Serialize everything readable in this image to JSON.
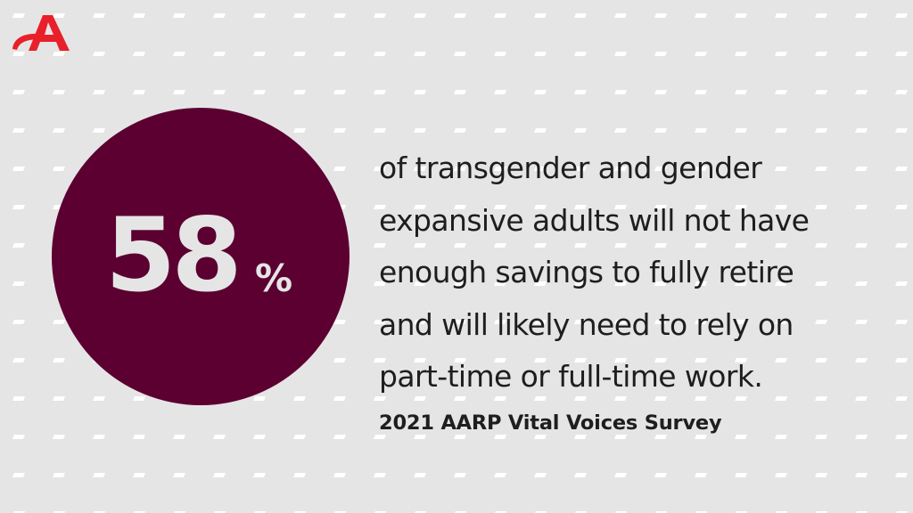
{
  "brand": {
    "logo_icon": "aarp-a-logo-icon",
    "accent_color": "#e8202a"
  },
  "stat": {
    "value": "58",
    "unit": "%",
    "circle_color": "#5b0030"
  },
  "statement": {
    "lines": [
      "of transgender and gender",
      "expansive adults will not have",
      "enough savings to fully retire",
      "and will likely need to rely on",
      "part-time or full-time work."
    ]
  },
  "source": {
    "label": "2021 AARP Vital Voices Survey"
  },
  "colors": {
    "background": "#e6e5e6",
    "pattern": "#ffffff",
    "text": "#1e1e1e"
  }
}
